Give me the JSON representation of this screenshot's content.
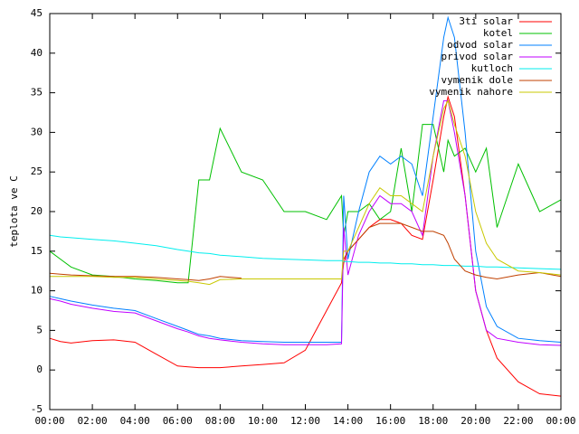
{
  "chart_data": {
    "type": "line",
    "ylabel": "teplota ve C",
    "x": [
      0,
      0.5,
      1,
      2,
      3,
      4,
      5,
      6,
      6.5,
      7,
      7.5,
      8,
      9,
      10,
      11,
      12,
      13,
      13.7,
      13.8,
      14,
      14.5,
      15,
      15.5,
      16,
      16.5,
      17,
      17.5,
      18,
      18.5,
      18.7,
      19,
      19.5,
      20,
      20.5,
      21,
      22,
      23,
      24
    ],
    "xlim": [
      0,
      24
    ],
    "xticks": [
      {
        "value": 0,
        "label": "00:00"
      },
      {
        "value": 2,
        "label": "02:00"
      },
      {
        "value": 4,
        "label": "04:00"
      },
      {
        "value": 6,
        "label": "06:00"
      },
      {
        "value": 8,
        "label": "08:00"
      },
      {
        "value": 10,
        "label": "10:00"
      },
      {
        "value": 12,
        "label": "12:00"
      },
      {
        "value": 14,
        "label": "14:00"
      },
      {
        "value": 16,
        "label": "16:00"
      },
      {
        "value": 18,
        "label": "18:00"
      },
      {
        "value": 20,
        "label": "20:00"
      },
      {
        "value": 22,
        "label": "22:00"
      },
      {
        "value": 24,
        "label": "00:00"
      }
    ],
    "ylim": [
      -5,
      45
    ],
    "yticks": [
      -5,
      0,
      5,
      10,
      15,
      20,
      25,
      30,
      35,
      40,
      45
    ],
    "legend": "top-right",
    "series": [
      {
        "name": "3ti solar",
        "color": "#ff0000",
        "values": [
          4,
          3.6,
          3.4,
          3.7,
          3.8,
          3.5,
          2,
          0.5,
          0.4,
          0.3,
          0.3,
          0.3,
          0.5,
          0.7,
          0.9,
          2.5,
          7.5,
          11,
          13.5,
          15,
          16.5,
          18,
          19,
          19,
          18.5,
          17,
          16.5,
          24,
          32,
          34.5,
          32,
          22,
          10,
          5,
          1.5,
          -1.5,
          -3,
          -3.3
        ]
      },
      {
        "name": "kotel",
        "color": "#00c000",
        "values": [
          15,
          14,
          13,
          12,
          11.8,
          11.5,
          11.3,
          11,
          11,
          24,
          24,
          30.5,
          25,
          24,
          20,
          20,
          19,
          22,
          17,
          20,
          20,
          21,
          19,
          20,
          28,
          20,
          31,
          31,
          25,
          29,
          27,
          28,
          25,
          28,
          18,
          26,
          20,
          21.5
        ]
      },
      {
        "name": "odvod solar",
        "color": "#0080ff",
        "values": [
          9.3,
          9,
          8.7,
          8.2,
          7.8,
          7.5,
          6.5,
          5.5,
          5,
          4.5,
          4.3,
          4,
          3.7,
          3.6,
          3.5,
          3.5,
          3.5,
          3.5,
          22,
          14,
          20,
          25,
          27,
          26,
          27,
          26,
          22,
          32,
          42,
          44.5,
          42,
          30,
          15,
          8,
          5.5,
          4,
          3.7,
          3.5
        ]
      },
      {
        "name": "privod solar",
        "color": "#c000ff",
        "values": [
          9,
          8.7,
          8.3,
          7.8,
          7.4,
          7.2,
          6.2,
          5.2,
          4.8,
          4.3,
          4,
          3.8,
          3.5,
          3.3,
          3.2,
          3.2,
          3.2,
          3.3,
          18,
          12,
          17,
          20,
          22,
          21,
          21,
          20,
          17,
          27,
          34,
          34,
          30,
          22,
          10,
          5,
          4,
          3.5,
          3.2,
          3.1
        ]
      },
      {
        "name": "kutloch",
        "color": "#00eeee",
        "values": [
          17,
          16.8,
          16.7,
          16.5,
          16.3,
          16,
          15.7,
          15.2,
          15,
          14.8,
          14.7,
          14.5,
          14.3,
          14.1,
          14,
          13.9,
          13.8,
          13.8,
          13.7,
          13.7,
          13.6,
          13.6,
          13.5,
          13.5,
          13.4,
          13.4,
          13.3,
          13.3,
          13.2,
          13.2,
          13.2,
          13.1,
          13.1,
          13,
          13,
          12.9,
          12.8,
          12.7
        ]
      },
      {
        "name": "vymenik dole",
        "color": "#c04000",
        "values": [
          12.2,
          12.1,
          12,
          11.9,
          11.8,
          11.8,
          11.7,
          11.5,
          11.4,
          11.3,
          11.5,
          11.8,
          11.6,
          null,
          null,
          null,
          null,
          null,
          14,
          15,
          16.5,
          18,
          18.5,
          18.5,
          18.5,
          18,
          17.5,
          17.5,
          17,
          16,
          14,
          12.5,
          12,
          11.7,
          11.5,
          12,
          12.3,
          11.8
        ]
      },
      {
        "name": "vymenik nahore",
        "color": "#c8c800",
        "values": [
          11.8,
          11.8,
          11.8,
          11.8,
          11.7,
          11.7,
          11.5,
          11.3,
          11.2,
          11,
          10.8,
          11.4,
          11.5,
          11.5,
          11.5,
          11.5,
          11.5,
          11.5,
          15,
          15,
          18,
          21,
          23,
          22,
          22,
          21,
          20,
          27,
          33,
          34,
          31,
          27,
          20,
          16,
          14,
          12.5,
          12.3,
          12
        ]
      }
    ]
  }
}
